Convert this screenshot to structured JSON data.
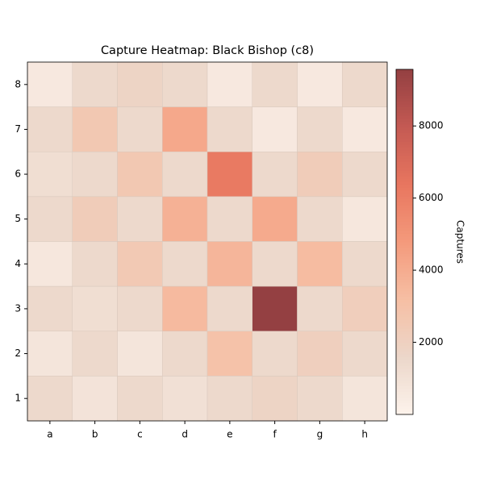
{
  "chart_data": {
    "type": "heatmap",
    "title": "Capture Heatmap: Black Bishop (c8)",
    "x_categories": [
      "a",
      "b",
      "c",
      "d",
      "e",
      "f",
      "g",
      "h"
    ],
    "y_categories": [
      "8",
      "7",
      "6",
      "5",
      "4",
      "3",
      "2",
      "1"
    ],
    "values": [
      [
        600,
        1500,
        1800,
        1500,
        600,
        1500,
        600,
        1500
      ],
      [
        1500,
        2600,
        1500,
        4200,
        1500,
        600,
        1500,
        600
      ],
      [
        1200,
        1500,
        2600,
        1500,
        6200,
        1500,
        2300,
        1500
      ],
      [
        1500,
        2300,
        1500,
        3800,
        1500,
        4100,
        1500,
        700
      ],
      [
        700,
        1500,
        2500,
        1500,
        3600,
        1500,
        3300,
        1500
      ],
      [
        1500,
        1200,
        1500,
        3400,
        1500,
        9570,
        1500,
        2200
      ],
      [
        800,
        1500,
        800,
        1500,
        3000,
        1500,
        2100,
        1500
      ],
      [
        1500,
        900,
        1500,
        1100,
        1500,
        1800,
        1500,
        800
      ]
    ],
    "zlim": [
      0,
      9570
    ],
    "colorbar_ticks": [
      2000,
      4000,
      6000,
      8000
    ],
    "colorbar_label": "Captures",
    "colorscale": [
      "#fdf3ec",
      "#ecd7ca",
      "#f6bfa4",
      "#f49a7c",
      "#e8765f",
      "#c45a53",
      "#944042"
    ]
  }
}
